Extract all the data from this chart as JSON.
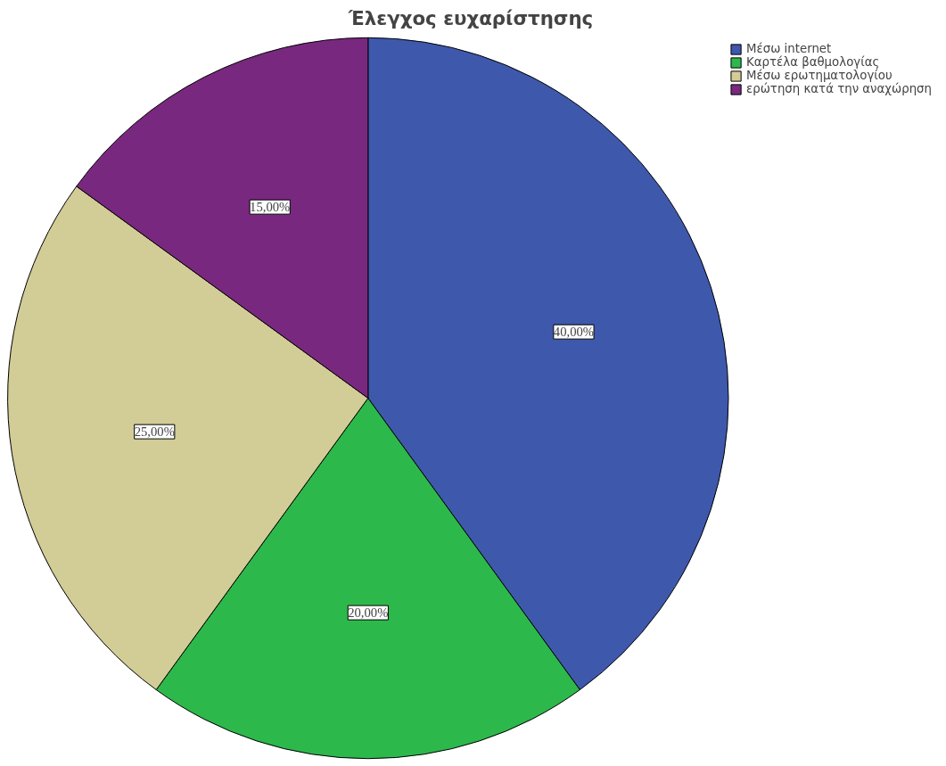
{
  "chart_data": {
    "type": "pie",
    "title": "Έλεγχος ευχαρίστησης",
    "categories": [
      "Μέσω internet",
      "Καρτέλα βαθμολογίας",
      "Μέσω ερωτηματολογίου",
      "ερώτηση κατά την αναχώρηση"
    ],
    "values": [
      40,
      20,
      25,
      15
    ],
    "colors": [
      "#3e58ac",
      "#2db84c",
      "#d2cc96",
      "#79287f"
    ],
    "value_labels": [
      "40,00%",
      "20,00%",
      "25,00%",
      "15,00%"
    ],
    "legend": "top right"
  }
}
